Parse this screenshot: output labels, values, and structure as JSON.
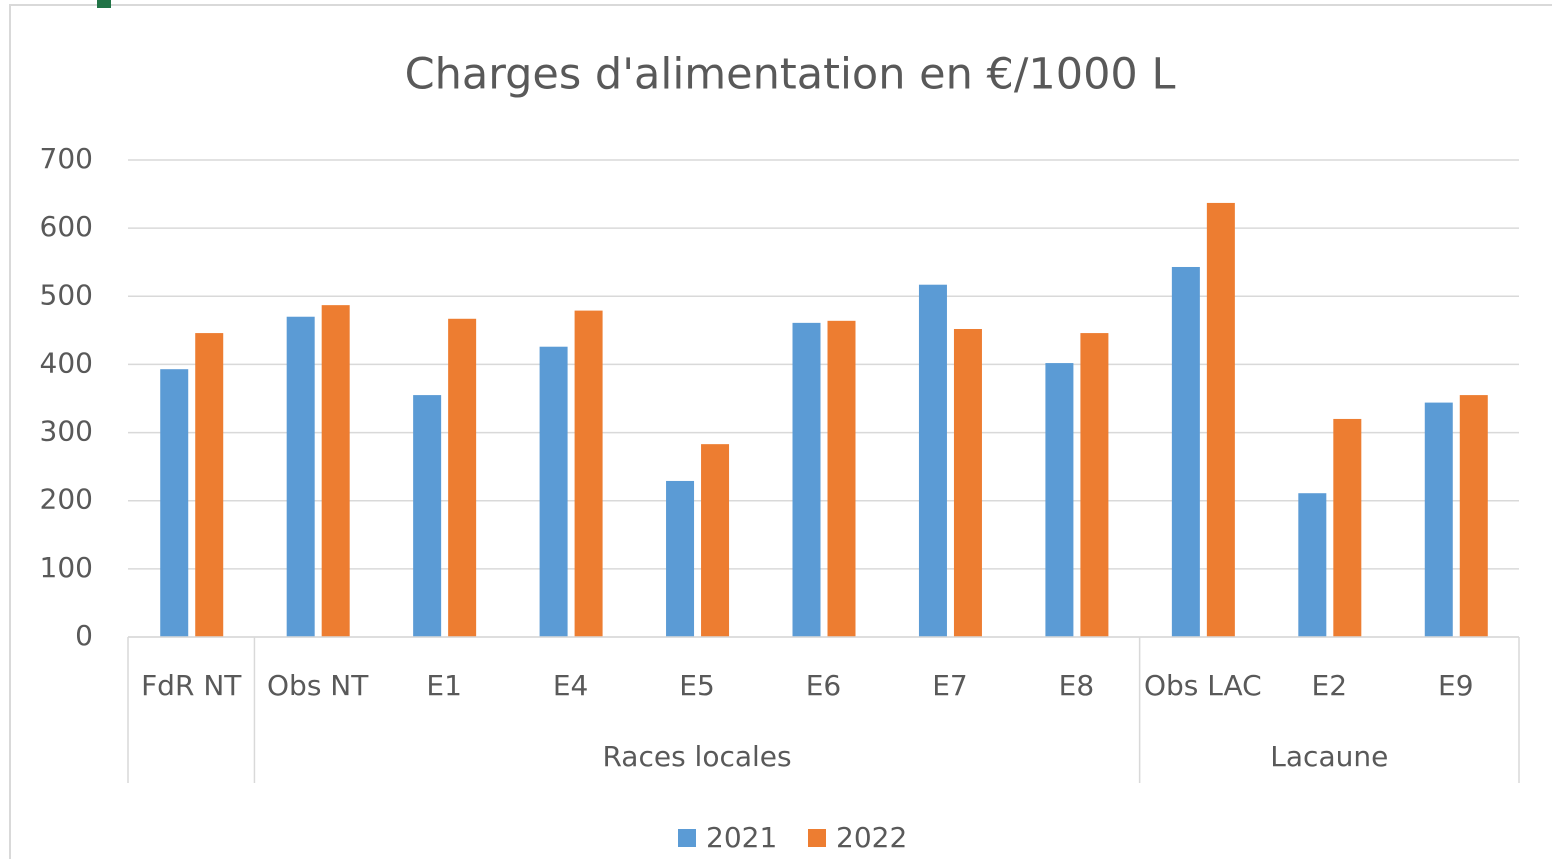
{
  "chart_data": {
    "type": "bar",
    "title": "Charges d'alimentation en €/1000 L",
    "groups": [
      {
        "label": null,
        "categories": [
          "FdR NT"
        ]
      },
      {
        "label": "Races locales",
        "categories": [
          "Obs NT",
          "E1",
          "E4",
          "E5",
          "E6",
          "E7",
          "E8"
        ]
      },
      {
        "label": "Lacaune",
        "categories": [
          "Obs LAC",
          "E2",
          "E9"
        ]
      }
    ],
    "series": [
      {
        "name": "2021",
        "color": "#5b9bd5",
        "values": [
          393,
          470,
          355,
          426,
          229,
          461,
          517,
          402,
          543,
          211,
          344
        ]
      },
      {
        "name": "2022",
        "color": "#ed7d31",
        "values": [
          446,
          487,
          467,
          479,
          283,
          464,
          452,
          446,
          637,
          320,
          355
        ]
      }
    ],
    "ylim": [
      0,
      700
    ],
    "yticks": [
      0,
      100,
      200,
      300,
      400,
      500,
      600,
      700
    ],
    "grid": true,
    "legend": "bottom"
  }
}
